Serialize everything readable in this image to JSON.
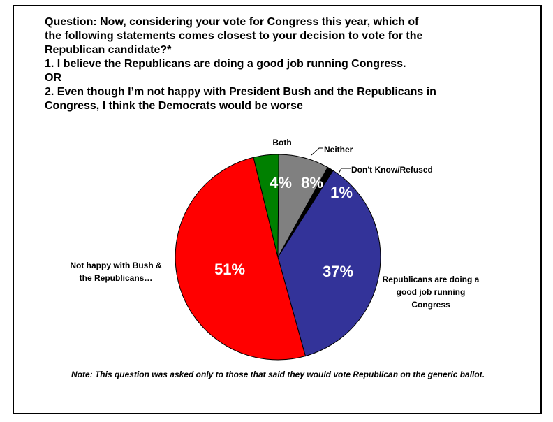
{
  "question": {
    "lines": [
      "Question: Now, considering your vote for Congress this year, which of",
      "the following statements comes closest to your decision to vote for the",
      "Republican candidate?*",
      "1. I believe the Republicans are doing a good job running Congress.",
      "OR",
      "2. Even though I’m not happy with President Bush and the Republicans in",
      "Congress, I think the Democrats would be worse"
    ]
  },
  "note": "Note: This question was asked only to those that said they would vote Republican on the generic ballot.",
  "chart_data": {
    "type": "pie",
    "slices": [
      {
        "label": "Don't Know/Refused",
        "value": 1,
        "value_label": "1%",
        "color": "#000000"
      },
      {
        "label": "Republicans are doing a good job running Congress",
        "value": 37,
        "value_label": "37%",
        "color": "#333399"
      },
      {
        "label": "Not happy with Bush & the Republicans…",
        "value": 51,
        "value_label": "51%",
        "color": "#ff0000"
      },
      {
        "label": "Both",
        "value": 4,
        "value_label": "4%",
        "color": "#008000"
      },
      {
        "label": "Neither",
        "value": 8,
        "value_label": "8%",
        "color": "#808080"
      }
    ],
    "category_label_lines": {
      "Don't Know/Refused": [
        "Don't Know/Refused"
      ],
      "Republicans are doing a good job running Congress": [
        "Republicans are doing a",
        "good job running",
        "Congress"
      ],
      "Not happy with Bush & the Republicans…": [
        "Not happy with Bush &",
        "the Republicans…"
      ],
      "Both": [
        "Both"
      ],
      "Neither": [
        "Neither"
      ]
    }
  }
}
